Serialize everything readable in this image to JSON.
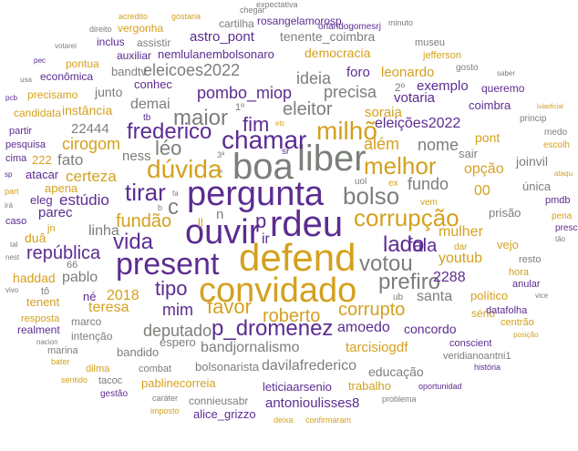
{
  "palette": {
    "purple": "#5c2c91",
    "gold": "#d4a11e",
    "gray": "#7b7f79",
    "light_purple": "#9a7cc0",
    "light_gold": "#e3c06b",
    "light_gray": "#a6a8a4"
  },
  "words": [
    {
      "text": "pergunta",
      "color": "purple"
    },
    {
      "text": "boa",
      "color": "gray"
    },
    {
      "text": "liber",
      "color": "gray"
    },
    {
      "text": "defend",
      "color": "gold"
    },
    {
      "text": "convidado",
      "color": "gold"
    },
    {
      "text": "present",
      "color": "purple"
    },
    {
      "text": "ouvir",
      "color": "purple"
    },
    {
      "text": "rdeu",
      "color": "purple"
    },
    {
      "text": "milhõ",
      "color": "gold"
    },
    {
      "text": "chamar",
      "color": "purple"
    },
    {
      "text": "melhor",
      "color": "gold"
    },
    {
      "text": "dúvida",
      "color": "gold"
    },
    {
      "text": "corrupção",
      "color": "gold"
    },
    {
      "text": "tirar",
      "color": "purple"
    },
    {
      "text": "vida",
      "color": "purple"
    },
    {
      "text": "bolso",
      "color": "gray"
    },
    {
      "text": "votou",
      "color": "gray"
    },
    {
      "text": "lado",
      "color": "purple"
    },
    {
      "text": "fala",
      "color": "purple"
    },
    {
      "text": "prefiro",
      "color": "gray"
    },
    {
      "text": "p_dromenez",
      "color": "purple"
    },
    {
      "text": "roberto",
      "color": "gold"
    },
    {
      "text": "corrupto",
      "color": "gold"
    },
    {
      "text": "maior",
      "color": "gray"
    },
    {
      "text": "fim",
      "color": "purple"
    },
    {
      "text": "eleitor",
      "color": "gray"
    },
    {
      "text": "frederico",
      "color": "purple"
    },
    {
      "text": "léo",
      "color": "gray"
    },
    {
      "text": "fundão",
      "color": "gold"
    },
    {
      "text": "república",
      "color": "purple"
    },
    {
      "text": "tipo",
      "color": "purple"
    },
    {
      "text": "favor",
      "color": "gold"
    },
    {
      "text": "mim",
      "color": "purple"
    },
    {
      "text": "deputado",
      "color": "gray"
    },
    {
      "text": "pombo_miop",
      "color": "purple"
    },
    {
      "text": "eleicoes2022",
      "color": "gray"
    },
    {
      "text": "precisa",
      "color": "gray"
    },
    {
      "text": "ideia",
      "color": "gray"
    },
    {
      "text": "além",
      "color": "gold"
    },
    {
      "text": "fundo",
      "color": "gray"
    },
    {
      "text": "nome",
      "color": "gray"
    },
    {
      "text": "eleições2022",
      "color": "purple"
    },
    {
      "text": "cirogom",
      "color": "gold"
    },
    {
      "text": "certeza",
      "color": "gold"
    },
    {
      "text": "fato",
      "color": "gray"
    },
    {
      "text": "estúdio",
      "color": "purple"
    },
    {
      "text": "linha",
      "color": "gray"
    },
    {
      "text": "ness",
      "color": "gray"
    },
    {
      "text": "ir",
      "color": "purple"
    },
    {
      "text": "n",
      "color": "gray"
    },
    {
      "text": "c",
      "color": "gray"
    },
    {
      "text": "p",
      "color": "purple"
    },
    {
      "text": "2018",
      "color": "gold"
    },
    {
      "text": "né",
      "color": "purple"
    },
    {
      "text": "teresa",
      "color": "gold"
    },
    {
      "text": "pablo",
      "color": "gray"
    },
    {
      "text": "mulher",
      "color": "gold"
    },
    {
      "text": "youtub",
      "color": "gold"
    },
    {
      "text": "2288",
      "color": "purple"
    },
    {
      "text": "santa",
      "color": "gray"
    },
    {
      "text": "amoedo",
      "color": "purple"
    },
    {
      "text": "bandjornalismo",
      "color": "gray"
    },
    {
      "text": "davilafrederico",
      "color": "gray"
    },
    {
      "text": "tarcisiogdf",
      "color": "gold"
    },
    {
      "text": "concordo",
      "color": "purple"
    },
    {
      "text": "bolsonarista",
      "color": "gray"
    },
    {
      "text": "pablinecorreia",
      "color": "gold"
    },
    {
      "text": "educação",
      "color": "gray"
    },
    {
      "text": "trabalho",
      "color": "gold"
    },
    {
      "text": "leticiaarsenio",
      "color": "purple"
    },
    {
      "text": "antonioulisses8",
      "color": "purple"
    },
    {
      "text": "alice_grizzo",
      "color": "purple"
    },
    {
      "text": "connieusabr",
      "color": "gray"
    },
    {
      "text": "bandido",
      "color": "gray"
    },
    {
      "text": "espero",
      "color": "gray"
    },
    {
      "text": "marco",
      "color": "gray"
    },
    {
      "text": "intenção",
      "color": "gray"
    },
    {
      "text": "marina",
      "color": "gray"
    },
    {
      "text": "combat",
      "color": "gray"
    },
    {
      "text": "tacoc",
      "color": "gray"
    },
    {
      "text": "gestão",
      "color": "purple"
    },
    {
      "text": "dilma",
      "color": "gold"
    },
    {
      "text": "sentido",
      "color": "gold"
    },
    {
      "text": "bater",
      "color": "gold"
    },
    {
      "text": "realment",
      "color": "purple"
    },
    {
      "text": "resposta",
      "color": "gold"
    },
    {
      "text": "tenent",
      "color": "gold"
    },
    {
      "text": "tô",
      "color": "gray"
    },
    {
      "text": "66",
      "color": "gray"
    },
    {
      "text": "haddad",
      "color": "gold"
    },
    {
      "text": "duâ",
      "color": "gold"
    },
    {
      "text": "parec",
      "color": "purple"
    },
    {
      "text": "eleg",
      "color": "purple"
    },
    {
      "text": "apena",
      "color": "gold"
    },
    {
      "text": "atacar",
      "color": "purple"
    },
    {
      "text": "222",
      "color": "gold"
    },
    {
      "text": "22444",
      "color": "gray"
    },
    {
      "text": "instância",
      "color": "gold"
    },
    {
      "text": "precisamo",
      "color": "gold"
    },
    {
      "text": "candidata",
      "color": "gold"
    },
    {
      "text": "pesquisa",
      "color": "purple"
    },
    {
      "text": "partir",
      "color": "purple"
    },
    {
      "text": "cima",
      "color": "purple"
    },
    {
      "text": "junto",
      "color": "gray"
    },
    {
      "text": "demai",
      "color": "gray"
    },
    {
      "text": "conhec",
      "color": "purple"
    },
    {
      "text": "bandtv",
      "color": "gray"
    },
    {
      "text": "econômica",
      "color": "purple"
    },
    {
      "text": "pontua",
      "color": "gold"
    },
    {
      "text": "inclus",
      "color": "purple"
    },
    {
      "text": "assistir",
      "color": "gray"
    },
    {
      "text": "auxiliar",
      "color": "purple"
    },
    {
      "text": "nemlulanembolsonaro",
      "color": "purple"
    },
    {
      "text": "astro_pont",
      "color": "purple"
    },
    {
      "text": "vergonha",
      "color": "gold"
    },
    {
      "text": "cartilha",
      "color": "gray"
    },
    {
      "text": "rosangelamorosp",
      "color": "purple"
    },
    {
      "text": "tenente_coimbra",
      "color": "gray"
    },
    {
      "text": "democracia",
      "color": "gold"
    },
    {
      "text": "foro",
      "color": "purple"
    },
    {
      "text": "leonardo",
      "color": "gold"
    },
    {
      "text": "soraia",
      "color": "gold"
    },
    {
      "text": "votaria",
      "color": "purple"
    },
    {
      "text": "exemplo",
      "color": "purple"
    },
    {
      "text": "queremo",
      "color": "purple"
    },
    {
      "text": "coimbra",
      "color": "purple"
    },
    {
      "text": "pont",
      "color": "gold"
    },
    {
      "text": "sair",
      "color": "gray"
    },
    {
      "text": "opção",
      "color": "gold"
    },
    {
      "text": "joinvil",
      "color": "gray"
    },
    {
      "text": "única",
      "color": "gray"
    },
    {
      "text": "00",
      "color": "gold"
    },
    {
      "text": "prisão",
      "color": "gray"
    },
    {
      "text": "pmdb",
      "color": "purple"
    },
    {
      "text": "vejo",
      "color": "gold"
    },
    {
      "text": "resto",
      "color": "gray"
    },
    {
      "text": "hora",
      "color": "gold"
    },
    {
      "text": "anular",
      "color": "purple"
    },
    {
      "text": "político",
      "color": "gold"
    },
    {
      "text": "sério",
      "color": "gold"
    },
    {
      "text": "datafolha",
      "color": "purple"
    },
    {
      "text": "centrão",
      "color": "gold"
    },
    {
      "text": "conscient",
      "color": "purple"
    },
    {
      "text": "veridianoantni1",
      "color": "gray"
    },
    {
      "text": "história",
      "color": "purple"
    },
    {
      "text": "oportunidad",
      "color": "purple"
    },
    {
      "text": "problema",
      "color": "gray"
    },
    {
      "text": "confirmaram",
      "color": "gold"
    },
    {
      "text": "deixa",
      "color": "gold"
    },
    {
      "text": "imposto",
      "color": "gold"
    },
    {
      "text": "caráter",
      "color": "gray"
    },
    {
      "text": "museu",
      "color": "gray"
    },
    {
      "text": "jefferson",
      "color": "gold"
    },
    {
      "text": "gosto",
      "color": "gray"
    },
    {
      "text": "saber",
      "color": "gray"
    },
    {
      "text": "princip",
      "color": "gray"
    },
    {
      "text": "medo",
      "color": "gray"
    },
    {
      "text": "escolh",
      "color": "gold"
    },
    {
      "text": "ataqu",
      "color": "gold"
    },
    {
      "text": "presc",
      "color": "purple"
    },
    {
      "text": "pena",
      "color": "gold"
    },
    {
      "text": "tão",
      "color": "gray"
    },
    {
      "text": "vice",
      "color": "gray"
    },
    {
      "text": "posição",
      "color": "gold"
    },
    {
      "text": "lulaoficial",
      "color": "gold"
    },
    {
      "text": "orlandogomesrj",
      "color": "purple"
    },
    {
      "text": "minuto",
      "color": "gray"
    },
    {
      "text": "chegar",
      "color": "gray"
    },
    {
      "text": "expectativa",
      "color": "gray"
    },
    {
      "text": "gostaria",
      "color": "gold"
    },
    {
      "text": "acredito",
      "color": "gold"
    },
    {
      "text": "direito",
      "color": "gray"
    },
    {
      "text": "votarei",
      "color": "gray"
    },
    {
      "text": "pec",
      "color": "purple"
    },
    {
      "text": "usa",
      "color": "gray"
    },
    {
      "text": "pcb",
      "color": "purple"
    },
    {
      "text": "part",
      "color": "gold"
    },
    {
      "text": "caso",
      "color": "purple"
    },
    {
      "text": "jn",
      "color": "gold"
    },
    {
      "text": "tal",
      "color": "gray"
    },
    {
      "text": "nest",
      "color": "gray"
    },
    {
      "text": "vivo",
      "color": "gray"
    },
    {
      "text": "irá",
      "color": "gray"
    },
    {
      "text": "sp",
      "color": "purple"
    },
    {
      "text": "nacion",
      "color": "gray"
    },
    {
      "text": "uol",
      "color": "gray"
    },
    {
      "text": "ex",
      "color": "gold"
    },
    {
      "text": "vem",
      "color": "gold"
    },
    {
      "text": "dar",
      "color": "gold"
    },
    {
      "text": "ub",
      "color": "gray"
    },
    {
      "text": "sr",
      "color": "purple"
    },
    {
      "text": "tb",
      "color": "purple"
    },
    {
      "text": "etc",
      "color": "gold"
    },
    {
      "text": "3ª",
      "color": "gray"
    },
    {
      "text": "ª",
      "color": "gray"
    },
    {
      "text": "fa",
      "color": "gray"
    },
    {
      "text": "b",
      "color": "gray"
    },
    {
      "text": "ll",
      "color": "gold"
    },
    {
      "text": "1º",
      "color": "gray"
    },
    {
      "text": "2º",
      "color": "gray"
    }
  ]
}
